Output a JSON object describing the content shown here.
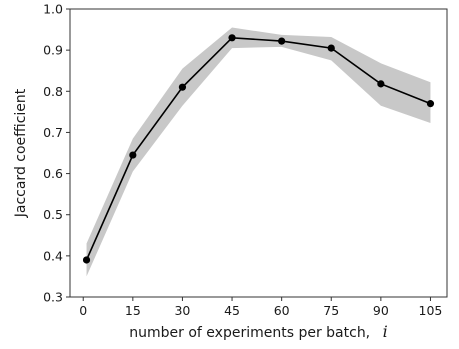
{
  "chart_data": {
    "type": "line",
    "xlabel": "number of experiments per batch,",
    "xlabel_var": "i",
    "ylabel": "Jaccard coefficient",
    "xlim": [
      -4,
      110
    ],
    "ylim": [
      0.3,
      1.0
    ],
    "xticks": [
      0,
      15,
      30,
      45,
      60,
      75,
      90,
      105
    ],
    "yticks": [
      0.3,
      0.4,
      0.5,
      0.6,
      0.7,
      0.8,
      0.9,
      1.0
    ],
    "grid": false,
    "series": [
      {
        "x": [
          1,
          15,
          30,
          45,
          60,
          75,
          90,
          105
        ],
        "y": [
          0.39,
          0.645,
          0.81,
          0.93,
          0.922,
          0.905,
          0.818,
          0.77
        ],
        "lower": [
          0.35,
          0.605,
          0.765,
          0.905,
          0.908,
          0.875,
          0.765,
          0.723
        ],
        "upper": [
          0.43,
          0.685,
          0.855,
          0.955,
          0.937,
          0.932,
          0.868,
          0.822
        ],
        "color": "#000000",
        "band_color": "#c8c8c8"
      }
    ]
  }
}
